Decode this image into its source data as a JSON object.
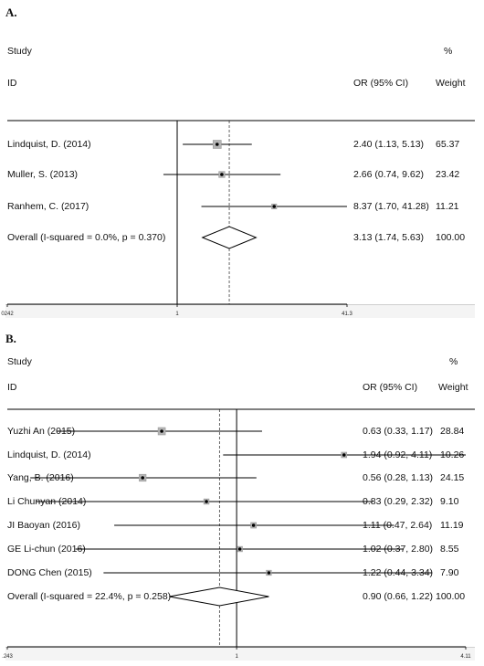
{
  "chart_data": [
    {
      "type": "forest",
      "panel_label": "A.",
      "header": {
        "col1_top": "Study",
        "col1_bottom": "ID",
        "col2": "OR (95% CI)",
        "col3_top": "%",
        "col3_bottom": "Weight"
      },
      "studies": [
        {
          "name": "Lindquist, D. (2014)",
          "or": 2.4,
          "lo": 1.13,
          "hi": 5.13,
          "ci_text": "2.40 (1.13, 5.13)",
          "weight": 65.37,
          "weight_text": "65.37"
        },
        {
          "name": "Muller, S. (2013)",
          "or": 2.66,
          "lo": 0.74,
          "hi": 9.62,
          "ci_text": "2.66 (0.74, 9.62)",
          "weight": 23.42,
          "weight_text": "23.42"
        },
        {
          "name": "Ranhem, C. (2017)",
          "or": 8.37,
          "lo": 1.7,
          "hi": 41.28,
          "ci_text": "8.37 (1.70, 41.28)",
          "weight": 11.21,
          "weight_text": "11.21"
        }
      ],
      "overall": {
        "name": "Overall  (I-squared = 0.0%, p = 0.370)",
        "or": 3.13,
        "lo": 1.74,
        "hi": 5.63,
        "ci_text": "3.13 (1.74, 5.63)",
        "weight_text": "100.00"
      },
      "x_ticks": [
        "0242",
        "1",
        "41.3"
      ],
      "x_range": [
        0.0242,
        41.3
      ],
      "scale": "log",
      "clip_hi": 41.3
    },
    {
      "type": "forest",
      "panel_label": "B.",
      "header": {
        "col1_top": "Study",
        "col1_bottom": "ID",
        "col2": "OR (95% CI)",
        "col3_top": "%",
        "col3_bottom": "Weight"
      },
      "studies": [
        {
          "name": "Yuzhi An (2015)",
          "or": 0.63,
          "lo": 0.33,
          "hi": 1.17,
          "ci_text": "0.63 (0.33, 1.17)",
          "weight": 28.84,
          "weight_text": "28.84"
        },
        {
          "name": "Lindquist, D. (2014)",
          "or": 1.94,
          "lo": 0.92,
          "hi": 4.11,
          "ci_text": "1.94 (0.92, 4.11)",
          "weight": 10.26,
          "weight_text": "10.26"
        },
        {
          "name": "Yang, B. (2016)",
          "or": 0.56,
          "lo": 0.28,
          "hi": 1.13,
          "ci_text": "0.56 (0.28, 1.13)",
          "weight": 24.15,
          "weight_text": "24.15"
        },
        {
          "name": "Li Chunyan (2014)",
          "or": 0.83,
          "lo": 0.29,
          "hi": 2.32,
          "ci_text": "0.83 (0.29, 2.32)",
          "weight": 9.1,
          "weight_text": "9.10"
        },
        {
          "name": "JI Baoyan (2016)",
          "or": 1.11,
          "lo": 0.47,
          "hi": 2.64,
          "ci_text": "1.11 (0.47, 2.64)",
          "weight": 11.19,
          "weight_text": "11.19"
        },
        {
          "name": "GE Li-chun (2016)",
          "or": 1.02,
          "lo": 0.37,
          "hi": 2.8,
          "ci_text": "1.02 (0.37, 2.80)",
          "weight": 8.55,
          "weight_text": "8.55"
        },
        {
          "name": "DONG Chen (2015)",
          "or": 1.22,
          "lo": 0.44,
          "hi": 3.34,
          "ci_text": "1.22 (0.44, 3.34)",
          "weight": 7.9,
          "weight_text": "7.90"
        }
      ],
      "overall": {
        "name": "Overall  (I-squared = 22.4%, p = 0.258)",
        "or": 0.9,
        "lo": 0.66,
        "hi": 1.22,
        "ci_text": "0.90 (0.66, 1.22)",
        "weight_text": "100.00"
      },
      "x_ticks": [
        ".243",
        "1",
        "4.11"
      ],
      "x_range": [
        0.243,
        4.11
      ],
      "scale": "log"
    }
  ]
}
